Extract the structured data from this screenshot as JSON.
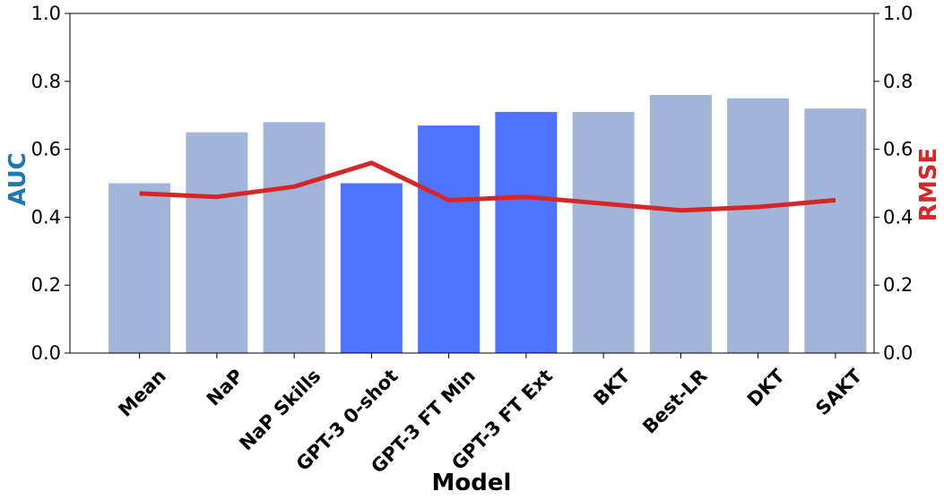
{
  "chart_data": {
    "type": "bar",
    "categories": [
      "Mean",
      "NaP",
      "NaP Skills",
      "GPT-3 0-shot",
      "GPT-3 FT Min",
      "GPT-3 FT Ext",
      "BKT",
      "Best-LR",
      "DKT",
      "SAKT"
    ],
    "series": [
      {
        "name": "AUC",
        "type": "bar",
        "axis": "left",
        "values": [
          0.5,
          0.65,
          0.68,
          0.5,
          0.67,
          0.71,
          0.71,
          0.76,
          0.75,
          0.72
        ]
      },
      {
        "name": "RMSE",
        "type": "line",
        "axis": "right",
        "values": [
          0.47,
          0.46,
          0.49,
          0.56,
          0.45,
          0.46,
          0.44,
          0.42,
          0.43,
          0.45
        ]
      }
    ],
    "highlighted_categories": [
      "GPT-3 0-shot",
      "GPT-3 FT Min",
      "GPT-3 FT Ext"
    ],
    "xlabel": "Model",
    "ylabel": "AUC",
    "y2label": "RMSE",
    "ylim": [
      0,
      1.0
    ],
    "y2lim": [
      0,
      1.0
    ],
    "yticks": [
      "0.0",
      "0.2",
      "0.4",
      "0.6",
      "0.8",
      "1.0"
    ],
    "y2ticks": [
      "0.0",
      "0.2",
      "0.4",
      "0.6",
      "0.8",
      "1.0"
    ],
    "grid": false,
    "colors": {
      "bar": "#a2b5d8",
      "bar_highlight": "#4e74ff",
      "line": "#d62728",
      "ylabel": "#1f77b4",
      "y2label": "#d62728"
    }
  }
}
